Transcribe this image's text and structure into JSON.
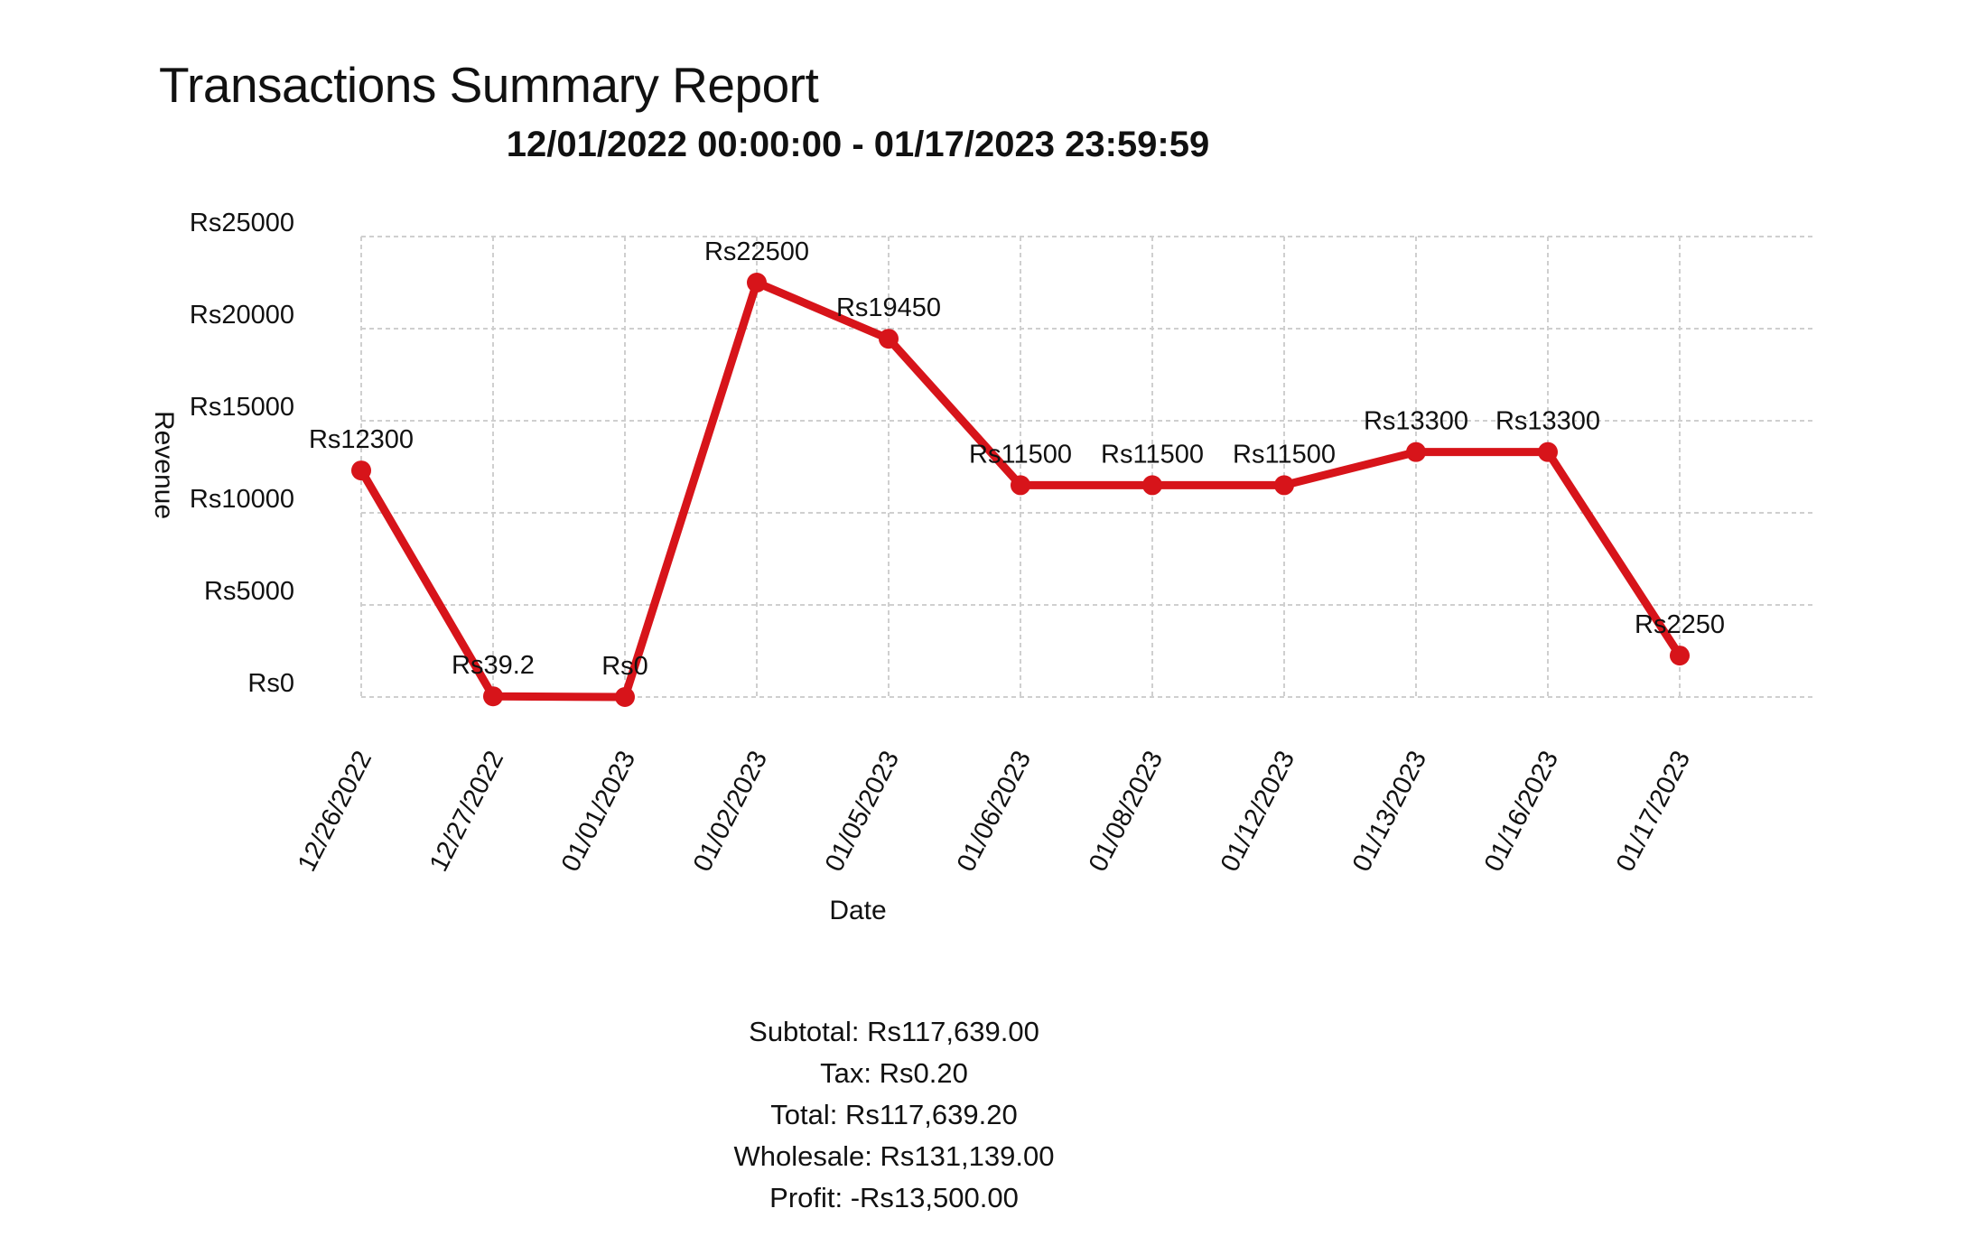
{
  "report": {
    "title": "Transactions Summary Report",
    "date_range": "12/01/2022 00:00:00 - 01/17/2023 23:59:59"
  },
  "chart_data": {
    "type": "line",
    "xlabel": "Date",
    "ylabel": "Revenue",
    "ylim": [
      0,
      25000
    ],
    "yticks": [
      0,
      5000,
      10000,
      15000,
      20000,
      25000
    ],
    "ytick_labels": [
      "Rs0",
      "Rs5000",
      "Rs10000",
      "Rs15000",
      "Rs20000",
      "Rs25000"
    ],
    "categories": [
      "12/26/2022",
      "12/27/2022",
      "01/01/2023",
      "01/02/2023",
      "01/05/2023",
      "01/06/2023",
      "01/08/2023",
      "01/12/2023",
      "01/13/2023",
      "01/16/2023",
      "01/17/2023"
    ],
    "values": [
      12300,
      39.2,
      0,
      22500,
      19450,
      11500,
      11500,
      11500,
      13300,
      13300,
      2250
    ],
    "data_labels": [
      "Rs12300",
      "Rs39.2",
      "Rs0",
      "Rs22500",
      "Rs19450",
      "Rs11500",
      "Rs11500",
      "Rs11500",
      "Rs13300",
      "Rs13300",
      "Rs2250"
    ],
    "grid": true,
    "line_color": "#d7141a"
  },
  "summary": {
    "subtotal": "Subtotal: Rs117,639.00",
    "tax": "Tax: Rs0.20",
    "total": "Total: Rs117,639.20",
    "wholesale": "Wholesale: Rs131,139.00",
    "profit": "Profit: -Rs13,500.00"
  }
}
